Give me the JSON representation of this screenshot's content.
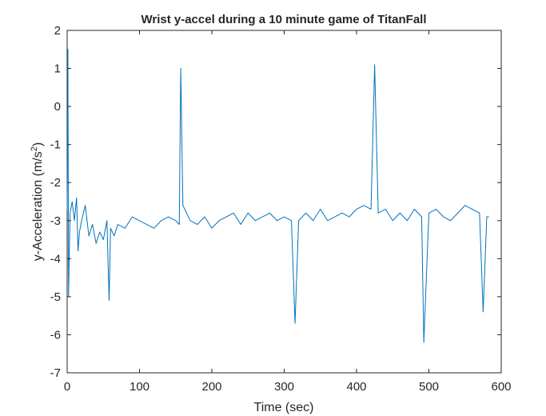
{
  "chart_data": {
    "type": "line",
    "title": "Wrist y-accel during a 10 minute game of TitanFall",
    "xlabel": "Time (sec)",
    "ylabel_main": "y-Acceleration (m/s",
    "ylabel_sup": "2",
    "ylabel_end": ")",
    "xlim": [
      0,
      600
    ],
    "ylim": [
      -7,
      2
    ],
    "xticks": [
      0,
      100,
      200,
      300,
      400,
      500,
      600
    ],
    "yticks": [
      -7,
      -6,
      -5,
      -4,
      -3,
      -2,
      -1,
      0,
      1,
      2
    ],
    "x_tick_labels": [
      "0",
      "100",
      "200",
      "300",
      "400",
      "500",
      "600"
    ],
    "y_tick_labels": [
      "-7",
      "-6",
      "-5",
      "-4",
      "-3",
      "-2",
      "-1",
      "0",
      "1",
      "2"
    ],
    "grid": false,
    "line_color": "#0072BD",
    "series": [
      {
        "x": [
          0,
          1,
          2,
          4,
          7,
          10,
          13,
          15,
          17,
          20,
          25,
          30,
          35,
          40,
          45,
          50,
          55,
          58,
          60,
          65,
          70,
          80,
          90,
          100,
          110,
          120,
          130,
          140,
          150,
          155,
          157,
          160,
          170,
          180,
          190,
          200,
          210,
          220,
          230,
          240,
          250,
          260,
          270,
          280,
          290,
          300,
          310,
          315,
          320,
          330,
          340,
          350,
          360,
          370,
          380,
          390,
          400,
          410,
          420,
          425,
          430,
          440,
          450,
          460,
          470,
          480,
          490,
          493,
          500,
          510,
          520,
          530,
          540,
          550,
          560,
          570,
          575,
          580,
          583
        ],
        "y": [
          -2.7,
          1.5,
          -5.0,
          -2.8,
          -2.5,
          -3.0,
          -2.4,
          -3.8,
          -3.3,
          -3.0,
          -2.6,
          -3.4,
          -3.1,
          -3.6,
          -3.3,
          -3.5,
          -3.0,
          -5.1,
          -3.2,
          -3.4,
          -3.1,
          -3.2,
          -2.9,
          -3.0,
          -3.1,
          -3.2,
          -3.0,
          -2.9,
          -3.0,
          -3.1,
          1.0,
          -2.6,
          -3.0,
          -3.1,
          -2.9,
          -3.2,
          -3.0,
          -2.9,
          -2.8,
          -3.1,
          -2.8,
          -3.0,
          -2.9,
          -2.8,
          -3.0,
          -2.9,
          -3.0,
          -5.7,
          -3.0,
          -2.8,
          -3.0,
          -2.7,
          -3.0,
          -2.9,
          -2.8,
          -2.9,
          -2.7,
          -2.6,
          -2.7,
          1.1,
          -2.8,
          -2.7,
          -3.0,
          -2.8,
          -3.0,
          -2.7,
          -2.9,
          -6.2,
          -2.8,
          -2.7,
          -2.9,
          -3.0,
          -2.8,
          -2.6,
          -2.7,
          -2.8,
          -5.4,
          -2.9,
          -2.9
        ]
      }
    ]
  }
}
